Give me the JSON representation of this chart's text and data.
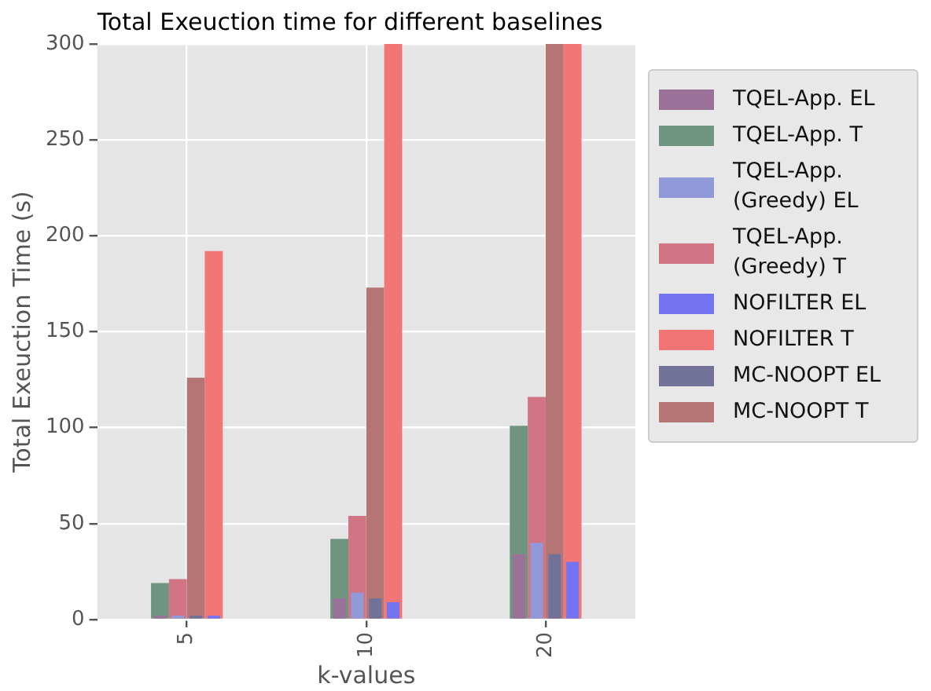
{
  "chart_data": {
    "type": "bar",
    "title": "Total Exeuction time for different baselines",
    "xlabel": "k-values",
    "ylabel": "Total Exeuction Time (s)",
    "categories": [
      "5",
      "10",
      "20"
    ],
    "series": [
      {
        "name": "TQEL-App. EL",
        "color": "#9a7299",
        "values": [
          2,
          11,
          34
        ]
      },
      {
        "name": "TQEL-App. T",
        "color": "#6f9580",
        "values": [
          19,
          42,
          101
        ]
      },
      {
        "name": "TQEL-App. (Greedy) EL",
        "color": "#9199d9",
        "values": [
          2,
          14,
          40
        ]
      },
      {
        "name": "TQEL-App. (Greedy) T",
        "color": "#d17585",
        "values": [
          21,
          54,
          116
        ]
      },
      {
        "name": "NOFILTER EL",
        "color": "#7474f0",
        "values": [
          2,
          9,
          30
        ]
      },
      {
        "name": "NOFILTER T",
        "color": "#f37676",
        "values": [
          192,
          300,
          300
        ]
      },
      {
        "name": "MC-NOOPT EL",
        "color": "#727298",
        "values": [
          2,
          11,
          34
        ]
      },
      {
        "name": "MC-NOOPT T",
        "color": "#b57575",
        "values": [
          126,
          173,
          300
        ]
      }
    ],
    "ylim": [
      0,
      300
    ],
    "yticks": [
      0,
      50,
      100,
      150,
      200,
      250,
      300
    ],
    "grid": true,
    "legend": "right"
  }
}
